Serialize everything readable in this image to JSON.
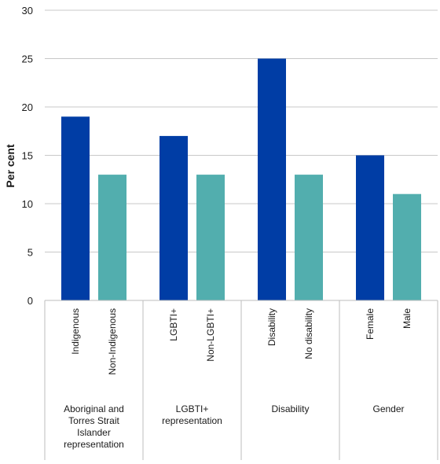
{
  "chart_data": {
    "type": "bar",
    "ylabel": "Per cent",
    "ylim": [
      0,
      30
    ],
    "yticks": [
      0,
      5,
      10,
      15,
      20,
      25,
      30
    ],
    "grid": true,
    "colors": {
      "primary": "#003DA5",
      "comparison": "#52AEAE"
    },
    "groups": [
      {
        "label": "Aboriginal and Torres Strait Islander representation",
        "label_lines": [
          "Aboriginal and",
          "Torres Strait",
          "Islander",
          "representation"
        ],
        "bars": [
          {
            "category": "Indigenous",
            "value": 19,
            "series": "primary"
          },
          {
            "category": "Non-Indigenous",
            "value": 13,
            "series": "comparison"
          }
        ]
      },
      {
        "label": "LGBTI+ representation",
        "label_lines": [
          "LGBTI+",
          "representation"
        ],
        "bars": [
          {
            "category": "LGBTI+",
            "value": 17,
            "series": "primary"
          },
          {
            "category": "Non-LGBTI+",
            "value": 13,
            "series": "comparison"
          }
        ]
      },
      {
        "label": "Disability",
        "label_lines": [
          "Disability"
        ],
        "bars": [
          {
            "category": "Disability",
            "value": 25,
            "series": "primary"
          },
          {
            "category": "No disability",
            "value": 13,
            "series": "comparison"
          }
        ]
      },
      {
        "label": "Gender",
        "label_lines": [
          "Gender"
        ],
        "bars": [
          {
            "category": "Female",
            "value": 15,
            "series": "primary"
          },
          {
            "category": "Male",
            "value": 11,
            "series": "comparison"
          }
        ]
      }
    ]
  }
}
